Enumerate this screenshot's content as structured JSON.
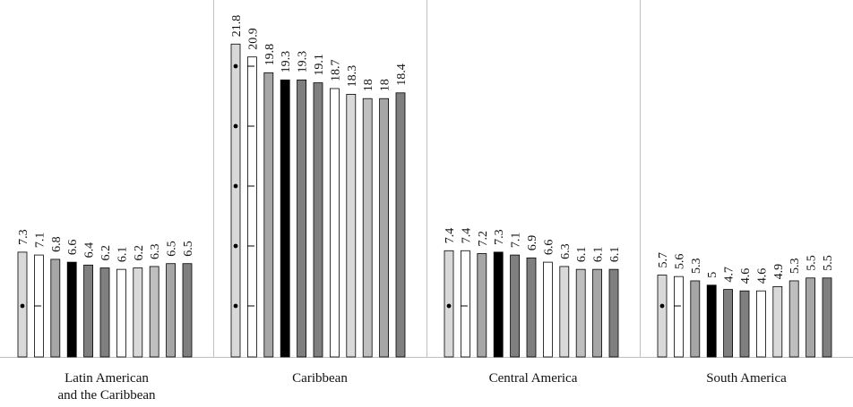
{
  "chart_data": {
    "type": "bar",
    "title": "",
    "xlabel": "",
    "ylabel": "",
    "ylim": [
      0,
      24
    ],
    "grid": false,
    "legend": "none",
    "groups": [
      {
        "label_lines": [
          "Latin American",
          "and the Caribbean"
        ],
        "values": [
          7.3,
          7.1,
          6.8,
          6.6,
          6.4,
          6.2,
          6.1,
          6.2,
          6.3,
          6.5,
          6.5
        ],
        "labels": [
          "7.3",
          "7.1",
          "6.8",
          "6.6",
          "6.4",
          "6.2",
          "6.1",
          "6.2",
          "6.3",
          "6.5",
          "6.5"
        ]
      },
      {
        "label_lines": [
          "Caribbean"
        ],
        "values": [
          21.8,
          20.9,
          19.8,
          19.3,
          19.3,
          19.1,
          18.7,
          18.3,
          18,
          18,
          18.4
        ],
        "labels": [
          "21.8",
          "20.9",
          "19.8",
          "19.3",
          "19.3",
          "19.1",
          "18.7",
          "18.3",
          "18",
          "18",
          "18.4"
        ]
      },
      {
        "label_lines": [
          "Central America"
        ],
        "values": [
          7.4,
          7.4,
          7.2,
          7.3,
          7.1,
          6.9,
          6.6,
          6.3,
          6.1,
          6.1,
          6.1
        ],
        "labels": [
          "7.4",
          "7.4",
          "7.2",
          "7.3",
          "7.1",
          "6.9",
          "6.6",
          "6.3",
          "6.1",
          "6.1",
          "6.1"
        ]
      },
      {
        "label_lines": [
          "South America"
        ],
        "values": [
          5.7,
          5.6,
          5.3,
          5,
          4.7,
          4.6,
          4.6,
          4.9,
          5.3,
          5.5,
          5.5
        ],
        "labels": [
          "5.7",
          "5.6",
          "5.3",
          "5",
          "4.7",
          "4.6",
          "4.6",
          "4.9",
          "5.3",
          "5.5",
          "5.5"
        ]
      }
    ],
    "bar_fills": [
      "#d9d9d9",
      "#ffffff",
      "#a6a6a6",
      "#000000",
      "#7f7f7f",
      "#7f7f7f",
      "#ffffff",
      "#d9d9d9",
      "#bfbfbf",
      "#a6a6a6",
      "#7f7f7f"
    ],
    "bar_patterns": [
      "dot",
      "dash",
      "none",
      "none",
      "none",
      "none",
      "none",
      "none",
      "none",
      "none",
      "none"
    ],
    "colors": {
      "outline": "#000000",
      "separator": "#bfbfbf"
    }
  }
}
